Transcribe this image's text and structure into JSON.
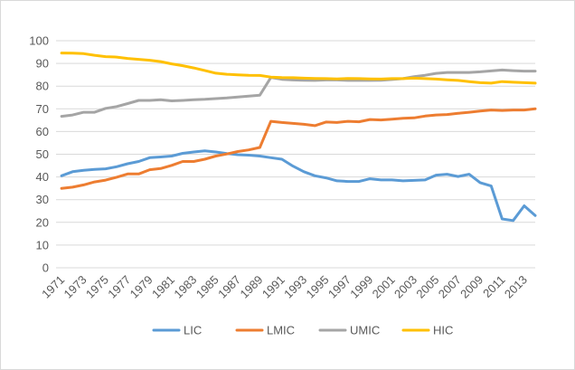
{
  "chart_data": {
    "type": "line",
    "title": "",
    "xlabel": "",
    "ylabel": "",
    "ylim": [
      0,
      100
    ],
    "yticks": [
      0,
      10,
      20,
      30,
      40,
      50,
      60,
      70,
      80,
      90,
      100
    ],
    "grid": "horizontal",
    "legend_position": "bottom",
    "x": [
      1971,
      1972,
      1973,
      1974,
      1975,
      1976,
      1977,
      1978,
      1979,
      1980,
      1981,
      1982,
      1983,
      1984,
      1985,
      1986,
      1987,
      1988,
      1989,
      1990,
      1991,
      1992,
      1993,
      1994,
      1995,
      1996,
      1997,
      1998,
      1999,
      2000,
      2001,
      2002,
      2003,
      2004,
      2005,
      2006,
      2007,
      2008,
      2009,
      2010,
      2011,
      2012,
      2013,
      2014
    ],
    "xtick_labels": [
      "1971",
      "1973",
      "1975",
      "1977",
      "1979",
      "1981",
      "1983",
      "1985",
      "1987",
      "1989",
      "1991",
      "1993",
      "1995",
      "1997",
      "1999",
      "2001",
      "2003",
      "2005",
      "2007",
      "2009",
      "2011",
      "2013"
    ],
    "series": [
      {
        "name": "LIC",
        "color": "#5B9BD5",
        "values": [
          40.5,
          42.3,
          42.9,
          43.3,
          43.6,
          44.5,
          45.8,
          46.8,
          48.5,
          48.8,
          49.2,
          50.4,
          51.0,
          51.5,
          51.0,
          50.3,
          49.8,
          49.6,
          49.2,
          48.5,
          47.8,
          44.8,
          42.3,
          40.5,
          39.6,
          38.3,
          38.0,
          38.0,
          39.2,
          38.7,
          38.7,
          38.3,
          38.5,
          38.7,
          40.8,
          41.2,
          40.2,
          41.2,
          37.5,
          36.0,
          21.5,
          20.8,
          27.3,
          23.0
        ]
      },
      {
        "name": "LMIC",
        "color": "#ED7D31",
        "values": [
          35.0,
          35.5,
          36.5,
          37.8,
          38.6,
          39.9,
          41.3,
          41.3,
          43.2,
          43.7,
          45.1,
          46.8,
          46.8,
          47.8,
          49.2,
          50.1,
          51.2,
          51.9,
          53.0,
          64.5,
          64.0,
          63.6,
          63.2,
          62.6,
          64.2,
          64.0,
          64.5,
          64.3,
          65.3,
          65.1,
          65.4,
          65.8,
          66.0,
          66.8,
          67.3,
          67.5,
          68.0,
          68.5,
          69.0,
          69.5,
          69.3,
          69.5,
          69.5,
          70.0
        ]
      },
      {
        "name": "UMIC",
        "color": "#A5A5A5",
        "values": [
          66.7,
          67.3,
          68.5,
          68.5,
          70.2,
          71.0,
          72.3,
          73.7,
          73.7,
          74.0,
          73.5,
          73.7,
          74.0,
          74.2,
          74.5,
          74.8,
          75.2,
          75.6,
          76.0,
          83.8,
          83.0,
          82.7,
          82.6,
          82.5,
          82.7,
          82.7,
          82.5,
          82.5,
          82.5,
          82.6,
          82.9,
          83.3,
          84.2,
          84.8,
          85.6,
          86.0,
          86.0,
          86.0,
          86.3,
          86.7,
          87.1,
          86.8,
          86.6,
          86.6
        ]
      },
      {
        "name": "HIC",
        "color": "#FFC000",
        "values": [
          94.6,
          94.5,
          94.3,
          93.6,
          93.0,
          92.8,
          92.2,
          91.8,
          91.4,
          90.8,
          89.8,
          89.0,
          88.0,
          86.9,
          85.7,
          85.2,
          85.0,
          84.8,
          84.7,
          84.0,
          83.8,
          83.7,
          83.5,
          83.4,
          83.3,
          83.2,
          83.4,
          83.3,
          83.2,
          83.1,
          83.3,
          83.3,
          83.5,
          83.3,
          83.1,
          82.8,
          82.5,
          82.0,
          81.5,
          81.3,
          82.0,
          81.7,
          81.5,
          81.3
        ]
      }
    ]
  }
}
